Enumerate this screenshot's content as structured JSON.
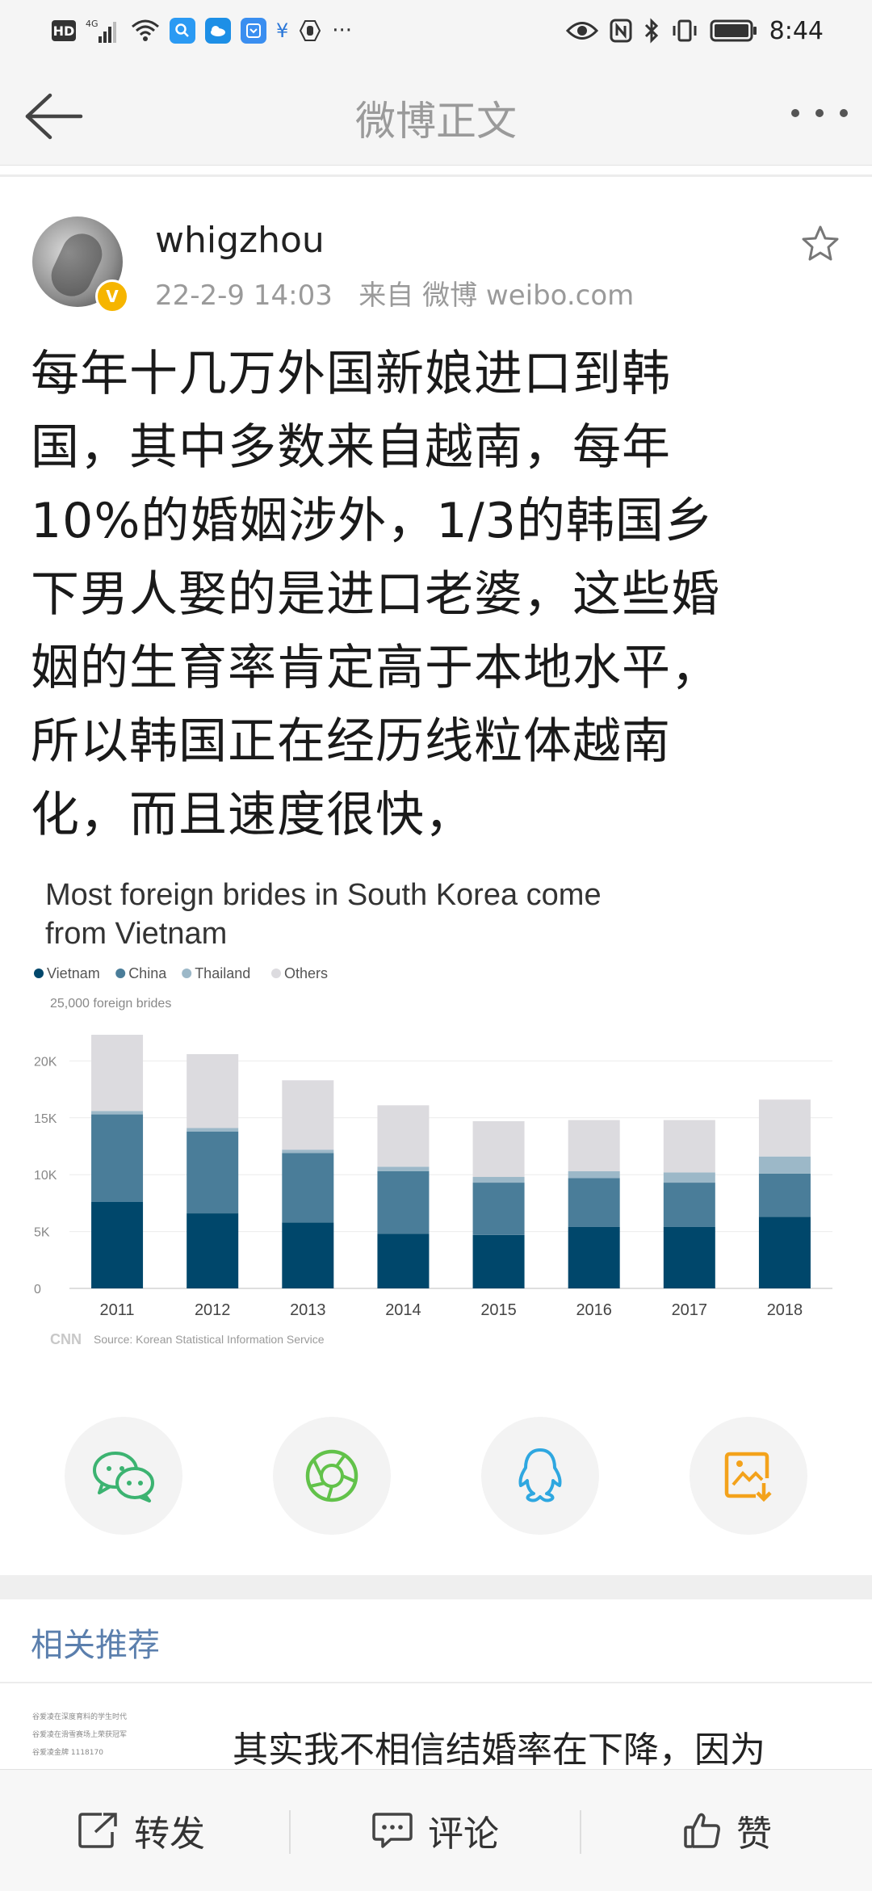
{
  "status_bar": {
    "hd": "HD",
    "network": "4G",
    "time": "8:44"
  },
  "header": {
    "title": "微博正文"
  },
  "post": {
    "username": "whigzhou",
    "meta": "22-2-9 14:03   来自 微博 weibo.com",
    "verified_mark": "V",
    "text_lines": [
      "每年十几万外国新娘进口到韩",
      "国，其中多数来自越南，每年",
      "10%的婚姻涉外，1/3的韩国乡",
      "下男人娶的是进口老婆，这些婚",
      "姻的生育率肯定高于本地水平，",
      "所以韩国正在经历线粒体越南",
      "化，而且速度很快，"
    ]
  },
  "chart_data": {
    "type": "bar",
    "stacked": true,
    "title": "Most foreign brides in South Korea come from Vietnam",
    "ylabel": "25,000 foreign brides",
    "categories": [
      "2011",
      "2012",
      "2013",
      "2014",
      "2015",
      "2016",
      "2017",
      "2018"
    ],
    "series": [
      {
        "name": "Vietnam",
        "color": "#00476b",
        "values": [
          7600,
          6600,
          5800,
          4800,
          4700,
          5400,
          5400,
          6300
        ]
      },
      {
        "name": "China",
        "color": "#4a7d99",
        "values": [
          7700,
          7200,
          6100,
          5500,
          4600,
          4300,
          3900,
          3800
        ]
      },
      {
        "name": "Thailand",
        "color": "#9cb8c8",
        "values": [
          300,
          300,
          300,
          400,
          500,
          600,
          900,
          1500
        ]
      },
      {
        "name": "Others",
        "color": "#dcdbdf",
        "values": [
          6700,
          6500,
          6100,
          5400,
          4900,
          4500,
          4600,
          5000
        ]
      }
    ],
    "ylim": [
      0,
      25000
    ],
    "yticks": [
      0,
      5000,
      10000,
      15000,
      20000
    ],
    "ytick_labels": [
      "0",
      "5K",
      "10K",
      "15K",
      "20K"
    ],
    "legend_placement": "top-left",
    "grid": true,
    "source": "Source: Korean Statistical Information Service",
    "logo": "CNN"
  },
  "share": {
    "items": [
      "wechat-icon",
      "moments-icon",
      "qq-icon",
      "save-image-icon"
    ],
    "colors": {
      "wechat": "#3cb371",
      "moments": "#62c24a",
      "qq": "#2ea7e0",
      "save": "#f3a21b"
    }
  },
  "related": {
    "title": "相关推荐",
    "item_text": "其实我不相信结婚率在下降，因为",
    "thumb_lines": [
      "谷爱凌在深度育料的学生时代",
      "谷爱凌在滑雪赛场上荣获冠军",
      "谷爱凌金牌 1118170"
    ]
  },
  "bottom_bar": {
    "repost": "转发",
    "comment": "评论",
    "like": "赞"
  }
}
